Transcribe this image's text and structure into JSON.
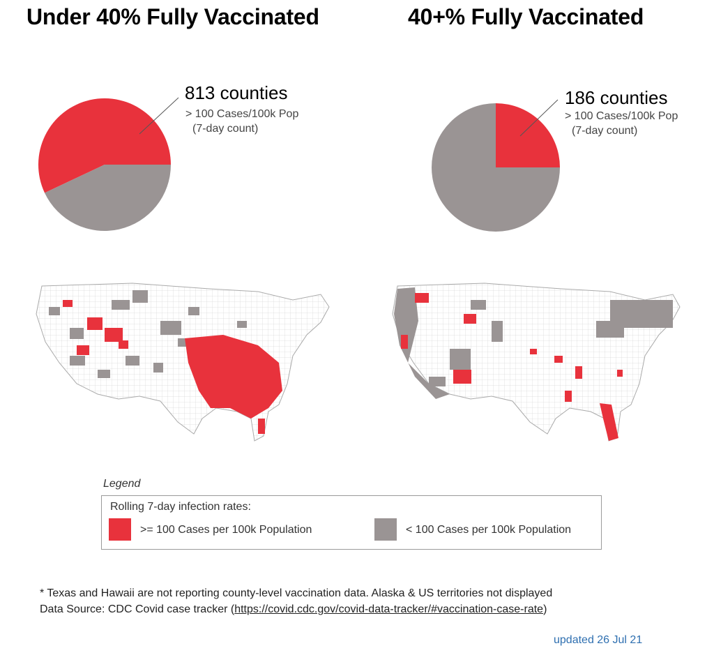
{
  "colors": {
    "high": "#e8323c",
    "low": "#9a9494",
    "line": "#555555"
  },
  "chart_data": [
    {
      "type": "pie",
      "title": "Under 40% Fully Vaccinated",
      "annotation": {
        "count": "813 counties",
        "line1": "> 100 Cases/100k Pop",
        "line2": "(7-day count)"
      },
      "slices": [
        {
          "label": ">= 100 Cases per 100k Population",
          "fraction": 0.57
        },
        {
          "label": "< 100 Cases per 100k Population",
          "fraction": 0.43
        }
      ]
    },
    {
      "type": "pie",
      "title": "40+% Fully Vaccinated",
      "annotation": {
        "count": "186 counties",
        "line1": "> 100 Cases/100k Pop",
        "line2": "(7-day count)"
      },
      "slices": [
        {
          "label": ">= 100 Cases per 100k Population",
          "fraction": 0.25
        },
        {
          "label": "< 100 Cases per 100k Population",
          "fraction": 0.75
        }
      ]
    }
  ],
  "legend": {
    "title": "Legend",
    "heading": "Rolling 7-day infection rates:",
    "high_label": ">= 100 Cases per 100k Population",
    "low_label": "< 100 Cases per 100k Population"
  },
  "footnote": {
    "line1": "*  Texas and Hawaii are not reporting county-level vaccination data.  Alaska & US territories not displayed",
    "source_prefix": "Data Source: CDC Covid case tracker (",
    "source_url": "https://covid.cdc.gov/covid-data-tracker/#vaccination-case-rate",
    "source_suffix": ")"
  },
  "updated": "updated 26 Jul 21"
}
